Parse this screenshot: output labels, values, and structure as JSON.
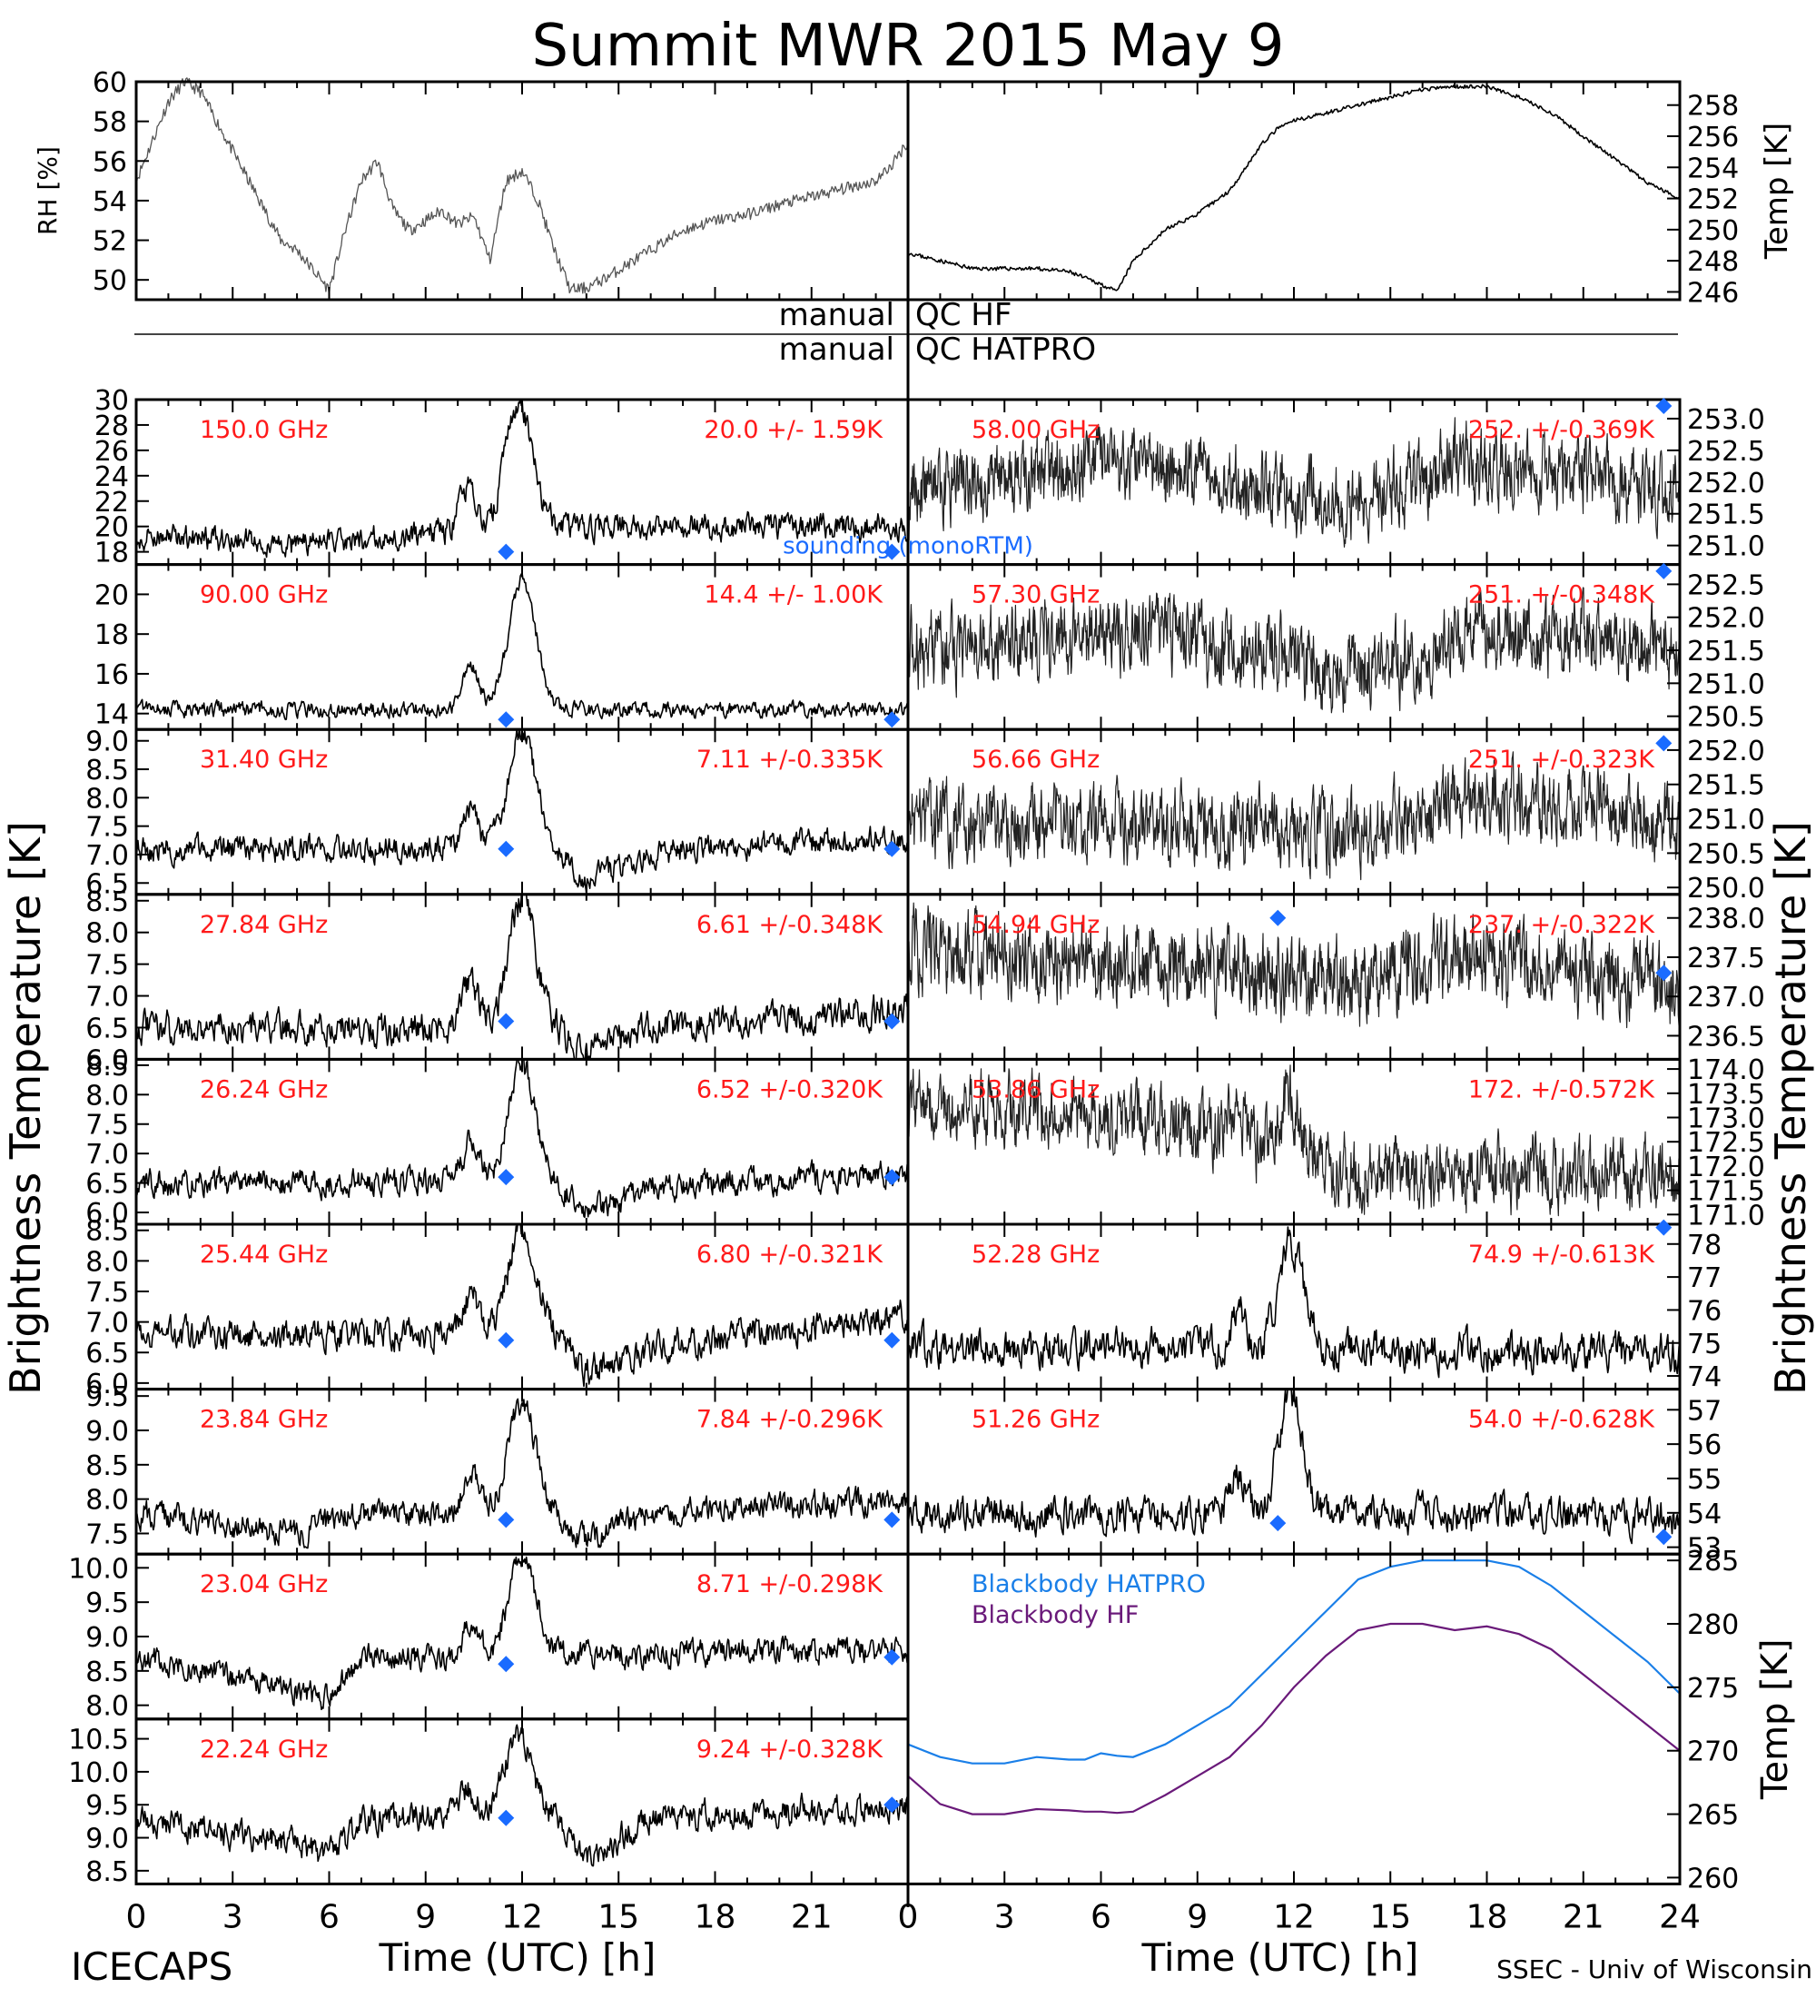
{
  "title": "Summit MWR 2015 May  9",
  "footer_left": "ICECAPS",
  "footer_right": "SSEC - Univ of Wisconsin",
  "colors": {
    "annotation": "#ff1a1a",
    "sounding": "#1a6bff",
    "bb_hatpro": "#1a7fe8",
    "bb_hf": "#6a1a7a"
  },
  "qc": {
    "hf_left": "manual",
    "hf_right": "QC HF",
    "hatpro_left": "manual",
    "hatpro_right": "QC HATPRO"
  },
  "chart_data": [
    {
      "panel": "rh",
      "type": "line",
      "ylabel": "RH [%]",
      "xlim": [
        0,
        24
      ],
      "ylim": [
        49,
        60
      ],
      "yticks": [
        50,
        52,
        54,
        56,
        58,
        60
      ],
      "x": [
        0,
        0.5,
        1,
        1.5,
        2,
        2.5,
        3,
        3.5,
        4,
        4.5,
        5,
        5.5,
        6,
        6.5,
        7,
        7.5,
        8,
        8.5,
        9,
        9.5,
        10,
        10.5,
        11,
        11.5,
        12,
        12.5,
        13,
        13.5,
        14,
        14.5,
        15,
        16,
        17,
        18,
        19,
        20,
        21,
        22,
        23,
        23.5,
        24
      ],
      "values": [
        55,
        57,
        59,
        60,
        59.5,
        58,
        56.5,
        55,
        53.5,
        52,
        51.5,
        50.5,
        49.5,
        52.5,
        55,
        56,
        53.5,
        52.5,
        53,
        53.5,
        52.8,
        53.2,
        51,
        55,
        55.5,
        54,
        51.5,
        49.5,
        49.6,
        50,
        50.5,
        51.5,
        52.5,
        53,
        53.3,
        53.8,
        54.2,
        54.6,
        55,
        55.8,
        57
      ]
    },
    {
      "panel": "temp",
      "type": "line",
      "ylabel": "Temp [K]",
      "xlim": [
        0,
        24
      ],
      "ylim": [
        245.5,
        259.5
      ],
      "yticks": [
        246,
        248,
        250,
        252,
        254,
        256,
        258
      ],
      "x": [
        0,
        1,
        2,
        3,
        4,
        5,
        6,
        6.5,
        7,
        7.5,
        8,
        9,
        10,
        10.5,
        11,
        11.5,
        12,
        13,
        14,
        15,
        16,
        17,
        18,
        19,
        20,
        21,
        22,
        23,
        24
      ],
      "values": [
        248.5,
        248,
        247.5,
        247.5,
        247.5,
        247.3,
        246.5,
        246,
        248,
        249,
        250,
        251,
        252.5,
        254,
        255.5,
        256.5,
        257,
        257.5,
        258,
        258.5,
        259,
        259.2,
        259.2,
        258.5,
        257.5,
        256,
        254.5,
        253,
        252
      ]
    },
    {
      "panel": "tb",
      "type": "line",
      "freq": "150.0 GHz",
      "stat": "20.0 +/-  1.59K",
      "side": "left",
      "row": 0,
      "xlim": [
        0,
        24
      ],
      "ylim": [
        17,
        30
      ],
      "ytick_labels": [
        "18",
        "20",
        "22",
        "24",
        "26",
        "28",
        "30"
      ],
      "base": 19.5,
      "wiggle": 0.8,
      "bump_amp": 10,
      "bump_center": 11.9,
      "bump_width": 0.6,
      "trend": [
        [
          0,
          0
        ],
        [
          5,
          -1
        ],
        [
          9,
          0
        ],
        [
          14,
          0.5
        ],
        [
          24,
          0.5
        ]
      ],
      "markers": [
        [
          11.5,
          18
        ],
        [
          23.5,
          18
        ]
      ],
      "legend": "sounding (monoRTM)"
    },
    {
      "panel": "tb",
      "type": "line",
      "freq": "90.00 GHz",
      "stat": "14.4 +/-  1.00K",
      "side": "left",
      "row": 1,
      "xlim": [
        0,
        24
      ],
      "ylim": [
        13.2,
        21.5
      ],
      "ytick_labels": [
        "14",
        "16",
        "18",
        "20"
      ],
      "base": 14.2,
      "wiggle": 0.3,
      "bump_amp": 6.5,
      "bump_center": 12,
      "bump_width": 0.6,
      "trend": [
        [
          0,
          0
        ],
        [
          24,
          0
        ]
      ],
      "markers": [
        [
          11.5,
          13.7
        ],
        [
          23.5,
          13.7
        ]
      ]
    },
    {
      "panel": "tb",
      "type": "line",
      "freq": "31.40 GHz",
      "stat": "7.11 +/-0.335K",
      "side": "left",
      "row": 2,
      "xlim": [
        0,
        24
      ],
      "ylim": [
        6.3,
        9.2
      ],
      "ytick_labels": [
        "6.5",
        "7.0",
        "7.5",
        "8.0",
        "8.5",
        "9.0"
      ],
      "base": 7.1,
      "wiggle": 0.18,
      "bump_amp": 2,
      "bump_center": 12,
      "bump_width": 0.6,
      "trend": [
        [
          0,
          0
        ],
        [
          13,
          0
        ],
        [
          14,
          -0.5
        ],
        [
          15,
          -0.3
        ],
        [
          17,
          0
        ],
        [
          24,
          0.2
        ]
      ],
      "markers": [
        [
          11.5,
          7.1
        ],
        [
          23.5,
          7.1
        ]
      ]
    },
    {
      "panel": "tb",
      "type": "line",
      "freq": "27.84 GHz",
      "stat": "6.61 +/-0.348K",
      "side": "left",
      "row": 3,
      "xlim": [
        0,
        24
      ],
      "ylim": [
        6.0,
        8.6
      ],
      "ytick_labels": [
        "6.0",
        "6.5",
        "7.0",
        "7.5",
        "8.0",
        "8.5"
      ],
      "base": 6.5,
      "wiggle": 0.2,
      "bump_amp": 2,
      "bump_center": 12,
      "bump_width": 0.6,
      "trend": [
        [
          0,
          0
        ],
        [
          13,
          0
        ],
        [
          14,
          -0.4
        ],
        [
          16,
          0
        ],
        [
          24,
          0.3
        ]
      ],
      "markers": [
        [
          11.5,
          6.6
        ],
        [
          23.5,
          6.6
        ]
      ]
    },
    {
      "panel": "tb",
      "type": "line",
      "freq": "26.24 GHz",
      "stat": "6.52 +/-0.320K",
      "side": "left",
      "row": 4,
      "xlim": [
        0,
        24
      ],
      "ylim": [
        5.8,
        8.6
      ],
      "ytick_labels": [
        "6.0",
        "6.5",
        "7.0",
        "7.5",
        "8.0",
        "8.5"
      ],
      "base": 6.5,
      "wiggle": 0.18,
      "bump_amp": 2,
      "bump_center": 12,
      "bump_width": 0.6,
      "trend": [
        [
          0,
          0
        ],
        [
          13,
          0
        ],
        [
          14,
          -0.5
        ],
        [
          16,
          -0.1
        ],
        [
          24,
          0.2
        ]
      ],
      "markers": [
        [
          11.5,
          6.6
        ],
        [
          23.5,
          6.6
        ]
      ]
    },
    {
      "panel": "tb",
      "type": "line",
      "freq": "25.44 GHz",
      "stat": "6.80 +/-0.321K",
      "side": "left",
      "row": 5,
      "xlim": [
        0,
        24
      ],
      "ylim": [
        5.9,
        8.6
      ],
      "ytick_labels": [
        "6.0",
        "6.5",
        "7.0",
        "7.5",
        "8.0",
        "8.5"
      ],
      "base": 6.8,
      "wiggle": 0.2,
      "bump_amp": 1.8,
      "bump_center": 12,
      "bump_width": 0.6,
      "trend": [
        [
          0,
          0
        ],
        [
          13,
          0
        ],
        [
          14,
          -0.6
        ],
        [
          16,
          -0.2
        ],
        [
          24,
          0.3
        ]
      ],
      "markers": [
        [
          11.5,
          6.7
        ],
        [
          23.5,
          6.7
        ]
      ]
    },
    {
      "panel": "tb",
      "type": "line",
      "freq": "23.84 GHz",
      "stat": "7.84 +/-0.296K",
      "side": "left",
      "row": 6,
      "xlim": [
        0,
        24
      ],
      "ylim": [
        7.2,
        9.6
      ],
      "ytick_labels": [
        "7.5",
        "8.0",
        "8.5",
        "9.0",
        "9.5"
      ],
      "base": 7.8,
      "wiggle": 0.15,
      "bump_amp": 1.6,
      "bump_center": 12,
      "bump_width": 0.6,
      "trend": [
        [
          0,
          0
        ],
        [
          5,
          -0.3
        ],
        [
          7,
          0
        ],
        [
          13,
          0
        ],
        [
          14,
          -0.4
        ],
        [
          16,
          0
        ],
        [
          24,
          0.2
        ]
      ],
      "markers": [
        [
          11.5,
          7.7
        ],
        [
          23.5,
          7.7
        ]
      ]
    },
    {
      "panel": "tb",
      "type": "line",
      "freq": "23.04 GHz",
      "stat": "8.71 +/-0.298K",
      "side": "left",
      "row": 7,
      "xlim": [
        0,
        24
      ],
      "ylim": [
        7.8,
        10.2
      ],
      "ytick_labels": [
        "8.0",
        "8.5",
        "9.0",
        "9.5",
        "10.0"
      ],
      "base": 8.7,
      "wiggle": 0.15,
      "bump_amp": 1.4,
      "bump_center": 12,
      "bump_width": 0.6,
      "trend": [
        [
          0,
          0
        ],
        [
          5,
          -0.5
        ],
        [
          6,
          -0.6
        ],
        [
          7,
          0
        ],
        [
          24,
          0.1
        ]
      ],
      "markers": [
        [
          11.5,
          8.6
        ],
        [
          23.5,
          8.7
        ]
      ]
    },
    {
      "panel": "tb",
      "type": "line",
      "freq": "22.24 GHz",
      "stat": "9.24 +/-0.328K",
      "side": "left",
      "row": 8,
      "xlim": [
        0,
        24
      ],
      "ylim": [
        8.3,
        10.8
      ],
      "ytick_labels": [
        "8.5",
        "9.0",
        "9.5",
        "10.0",
        "10.5"
      ],
      "base": 9.3,
      "wiggle": 0.17,
      "bump_amp": 1.3,
      "bump_center": 11.9,
      "bump_width": 0.6,
      "trend": [
        [
          0,
          0
        ],
        [
          5,
          -0.4
        ],
        [
          6,
          -0.6
        ],
        [
          7,
          0
        ],
        [
          13,
          0
        ],
        [
          14,
          -0.6
        ],
        [
          16,
          0
        ],
        [
          24,
          0.2
        ]
      ],
      "markers": [
        [
          11.5,
          9.3
        ],
        [
          23.5,
          9.5
        ]
      ]
    },
    {
      "panel": "tb",
      "type": "line",
      "freq": "58.00 GHz",
      "stat": "252. +/-0.369K",
      "side": "right",
      "row": 0,
      "xlim": [
        0,
        24
      ],
      "ylim": [
        250.7,
        253.3
      ],
      "ytick_labels": [
        "251.0",
        "251.5",
        "252.0",
        "252.5",
        "253.0"
      ],
      "base": 252.0,
      "wiggle": 0.45,
      "bump_amp": 0,
      "bump_center": 12,
      "bump_width": 0.6,
      "fine": true,
      "trend": [
        [
          0,
          -0.1
        ],
        [
          7,
          0.3
        ],
        [
          14,
          -0.3
        ],
        [
          17,
          0.3
        ],
        [
          24,
          -0.1
        ]
      ],
      "markers": [
        [
          23.5,
          253.2
        ]
      ]
    },
    {
      "panel": "tb",
      "type": "line",
      "freq": "57.30 GHz",
      "stat": "251. +/-0.348K",
      "side": "right",
      "row": 1,
      "xlim": [
        0,
        24
      ],
      "ylim": [
        250.3,
        252.8
      ],
      "ytick_labels": [
        "250.5",
        "251.0",
        "251.5",
        "252.0",
        "252.5"
      ],
      "base": 251.5,
      "wiggle": 0.45,
      "bump_amp": 0,
      "bump_center": 12,
      "bump_width": 0.6,
      "fine": true,
      "trend": [
        [
          0,
          0
        ],
        [
          8,
          0.3
        ],
        [
          14,
          -0.4
        ],
        [
          18,
          0.3
        ],
        [
          24,
          0
        ]
      ],
      "markers": [
        [
          23.5,
          252.7
        ]
      ]
    },
    {
      "panel": "tb",
      "type": "line",
      "freq": "56.66 GHz",
      "stat": "251. +/-0.323K",
      "side": "right",
      "row": 2,
      "xlim": [
        0,
        24
      ],
      "ylim": [
        249.9,
        252.3
      ],
      "ytick_labels": [
        "250.0",
        "250.5",
        "251.0",
        "251.5",
        "252.0"
      ],
      "base": 251.0,
      "wiggle": 0.42,
      "bump_amp": 0,
      "bump_center": 12,
      "bump_width": 0.6,
      "fine": true,
      "trend": [
        [
          0,
          0
        ],
        [
          14,
          -0.2
        ],
        [
          18,
          0.3
        ],
        [
          24,
          0
        ]
      ],
      "markers": [
        [
          23.5,
          252.1
        ]
      ]
    },
    {
      "panel": "tb",
      "type": "line",
      "freq": "54.94 GHz",
      "stat": "237. +/-0.322K",
      "side": "right",
      "row": 3,
      "xlim": [
        0,
        24
      ],
      "ylim": [
        236.2,
        238.3
      ],
      "ytick_labels": [
        "236.5",
        "237.0",
        "237.5",
        "238.0"
      ],
      "base": 237.4,
      "wiggle": 0.4,
      "bump_amp": 0,
      "bump_center": 12,
      "bump_width": 0.6,
      "fine": true,
      "trend": [
        [
          0,
          0.2
        ],
        [
          14,
          -0.2
        ],
        [
          18,
          0.1
        ],
        [
          24,
          -0.3
        ]
      ],
      "markers": [
        [
          11.5,
          238.0
        ],
        [
          23.5,
          237.3
        ]
      ]
    },
    {
      "panel": "tb",
      "type": "line",
      "freq": "53.86 GHz",
      "stat": "172. +/-0.572K",
      "side": "right",
      "row": 4,
      "xlim": [
        0,
        24
      ],
      "ylim": [
        170.8,
        174.2
      ],
      "ytick_labels": [
        "171.0",
        "171.5",
        "172.0",
        "172.5",
        "173.0",
        "173.5",
        "174.0"
      ],
      "base": 172.6,
      "wiggle": 0.55,
      "bump_amp": 1.2,
      "bump_center": 11.9,
      "bump_width": 0.5,
      "fine": true,
      "trend": [
        [
          0,
          0.8
        ],
        [
          6,
          0.4
        ],
        [
          10,
          0
        ],
        [
          13,
          -0.7
        ],
        [
          24,
          -0.8
        ]
      ],
      "markers": []
    },
    {
      "panel": "tb",
      "type": "line",
      "freq": "52.28 GHz",
      "stat": "74.9 +/-0.613K",
      "side": "right",
      "row": 5,
      "xlim": [
        0,
        24
      ],
      "ylim": [
        73.6,
        78.6
      ],
      "ytick_labels": [
        "74",
        "75",
        "76",
        "77",
        "78"
      ],
      "base": 74.9,
      "wiggle": 0.45,
      "bump_amp": 3.3,
      "bump_center": 11.9,
      "bump_width": 0.55,
      "trend": [
        [
          0,
          0
        ],
        [
          24,
          -0.2
        ]
      ],
      "markers": [
        [
          23.5,
          78.5
        ]
      ]
    },
    {
      "panel": "tb",
      "type": "line",
      "freq": "51.26 GHz",
      "stat": "54.0 +/-0.628K",
      "side": "right",
      "row": 6,
      "xlim": [
        0,
        24
      ],
      "ylim": [
        52.8,
        57.6
      ],
      "ytick_labels": [
        "53",
        "54",
        "55",
        "56",
        "57"
      ],
      "base": 54.0,
      "wiggle": 0.4,
      "bump_amp": 3.4,
      "bump_center": 11.9,
      "bump_width": 0.55,
      "trend": [
        [
          0,
          0
        ],
        [
          24,
          -0.1
        ]
      ],
      "markers": [
        [
          11.5,
          53.7
        ],
        [
          23.5,
          53.3
        ]
      ]
    },
    {
      "panel": "blackbody",
      "type": "line",
      "ylabel": "Temp [K]",
      "xlim": [
        0,
        24
      ],
      "ylim": [
        259.5,
        285.5
      ],
      "yticks": [
        260,
        265,
        270,
        275,
        280,
        285
      ],
      "series": [
        {
          "name": "Blackbody HATPRO",
          "color": "#1a7fe8",
          "x": [
            0,
            1,
            2,
            3,
            4,
            5,
            5.5,
            6,
            6.5,
            7,
            8,
            9,
            10,
            11,
            12,
            13,
            14,
            15,
            16,
            17,
            18,
            19,
            20,
            21,
            22,
            23,
            24
          ],
          "values": [
            270.5,
            269.5,
            269,
            269,
            269.5,
            269.3,
            269.3,
            269.8,
            269.6,
            269.5,
            270.5,
            272,
            273.5,
            276,
            278.5,
            281,
            283.5,
            284.5,
            285,
            285,
            285,
            284.5,
            283,
            281,
            279,
            277,
            274.5
          ]
        },
        {
          "name": "Blackbody HF",
          "color": "#6a1a7a",
          "x": [
            0,
            1,
            2,
            3,
            4,
            5,
            5.5,
            6,
            6.5,
            7,
            8,
            9,
            10,
            11,
            12,
            13,
            14,
            15,
            16,
            17,
            18,
            19,
            20,
            21,
            22,
            23,
            24
          ],
          "values": [
            268,
            265.8,
            265,
            265,
            265.4,
            265.3,
            265.2,
            265.2,
            265.1,
            265.2,
            266.5,
            268,
            269.5,
            272,
            275,
            277.5,
            279.5,
            280,
            280,
            279.5,
            279.8,
            279.2,
            278,
            276,
            274,
            272,
            270
          ]
        }
      ]
    }
  ],
  "axes": {
    "xticks": [
      0,
      3,
      6,
      9,
      12,
      15,
      18,
      21
    ],
    "xticks_right": [
      0,
      3,
      6,
      9,
      12,
      15,
      18,
      21,
      24
    ],
    "xlabel": "Time (UTC) [h]",
    "ylabel_left": "Brightness Temperature [K]",
    "ylabel_right": "Brightness Temperature [K]"
  }
}
